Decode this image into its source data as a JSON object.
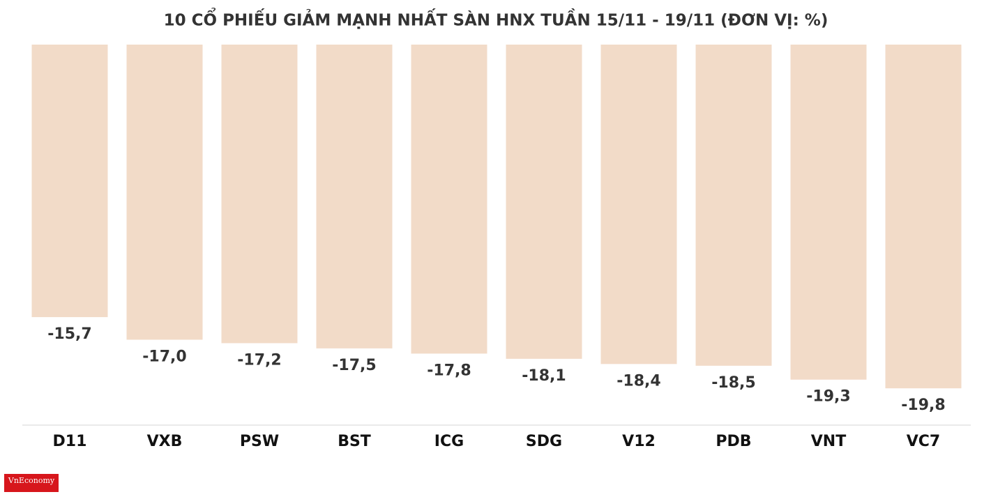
{
  "chart_data": {
    "type": "bar",
    "title": "10 CỔ PHIẾU GIẢM MẠNH NHẤT SÀN HNX TUẦN 15/11 - 19/11 (ĐƠN VỊ: %)",
    "categories": [
      "D11",
      "VXB",
      "PSW",
      "BST",
      "ICG",
      "SDG",
      "V12",
      "PDB",
      "VNT",
      "VC7"
    ],
    "values": [
      -15.7,
      -17.0,
      -17.2,
      -17.5,
      -17.8,
      -18.1,
      -18.4,
      -18.5,
      -19.3,
      -19.8
    ],
    "value_labels": [
      "-15,7",
      "-17,0",
      "-17,2",
      "-17,5",
      "-17,8",
      "-18,1",
      "-18,4",
      "-18,5",
      "-19,3",
      "-19,8"
    ],
    "color": "#f2dbc8",
    "ylim": [
      0,
      -21.8
    ],
    "logo": "VnEconomy"
  }
}
